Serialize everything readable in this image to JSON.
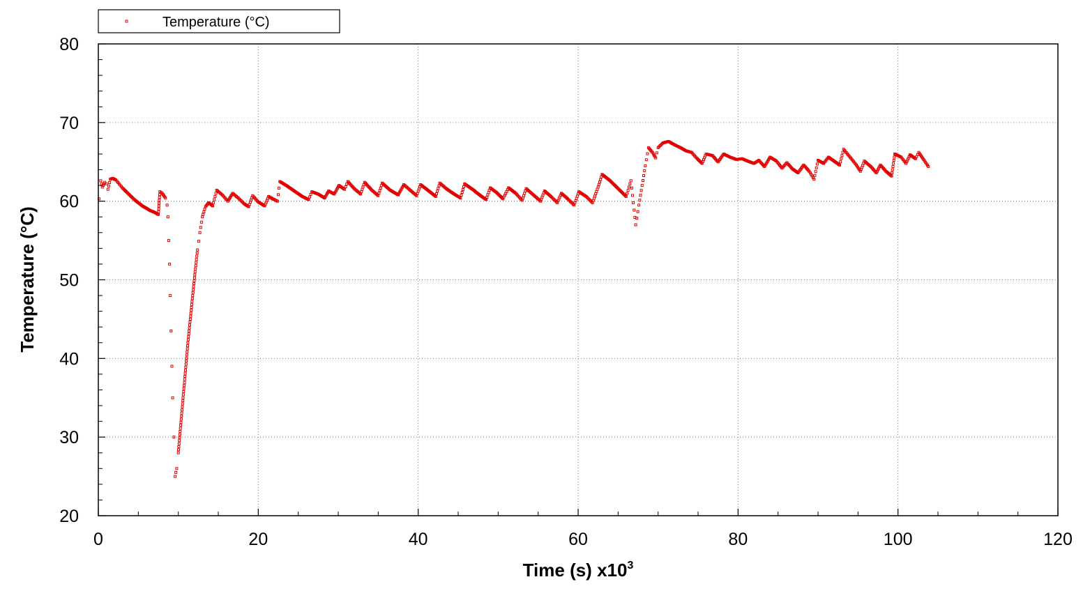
{
  "chart_data": {
    "type": "scatter",
    "xlabel": "Time (s) x10",
    "xlabel_superscript": "3",
    "ylabel": "Temperature  (°C)",
    "xlim": [
      0,
      120
    ],
    "ylim": [
      20,
      80
    ],
    "xticks": [
      0,
      20,
      40,
      60,
      80,
      100,
      120
    ],
    "yticks": [
      20,
      30,
      40,
      50,
      60,
      70,
      80
    ],
    "grid": true,
    "legend_position": "top-left",
    "series": [
      {
        "name": "Temperature (°C)",
        "color": "#e00000",
        "marker": "small-square",
        "points": [
          [
            0.1,
            60.3
          ],
          [
            0.3,
            62.6
          ],
          [
            0.5,
            61.8
          ],
          [
            0.8,
            62.4
          ],
          [
            1.0,
            62.2
          ],
          [
            1.2,
            61.5
          ],
          [
            1.5,
            62.8
          ],
          [
            1.8,
            62.9
          ],
          [
            2.2,
            62.7
          ],
          [
            2.6,
            62.2
          ],
          [
            3.0,
            61.7
          ],
          [
            3.5,
            61.2
          ],
          [
            4.0,
            60.7
          ],
          [
            4.5,
            60.2
          ],
          [
            5.0,
            59.8
          ],
          [
            5.5,
            59.4
          ],
          [
            6.0,
            59.1
          ],
          [
            6.5,
            58.8
          ],
          [
            7.0,
            58.6
          ],
          [
            7.5,
            58.3
          ],
          [
            7.7,
            61.2
          ],
          [
            8.0,
            61.0
          ],
          [
            8.4,
            60.4
          ],
          [
            8.6,
            59.5
          ],
          [
            8.7,
            58.0
          ],
          [
            8.8,
            55.0
          ],
          [
            8.9,
            52.0
          ],
          [
            9.0,
            48.0
          ],
          [
            9.1,
            43.5
          ],
          [
            9.2,
            39.0
          ],
          [
            9.3,
            35.0
          ],
          [
            9.45,
            30.0
          ],
          [
            9.6,
            25.0
          ],
          [
            9.8,
            26.0
          ],
          [
            10.0,
            28.0
          ],
          [
            10.3,
            31.5
          ],
          [
            10.6,
            35.0
          ],
          [
            10.9,
            38.5
          ],
          [
            11.2,
            42.0
          ],
          [
            11.5,
            45.0
          ],
          [
            11.8,
            48.0
          ],
          [
            12.1,
            51.0
          ],
          [
            12.4,
            53.8
          ],
          [
            12.7,
            56.0
          ],
          [
            13.0,
            58.0
          ],
          [
            13.4,
            59.3
          ],
          [
            13.8,
            59.8
          ],
          [
            14.3,
            59.4
          ],
          [
            14.8,
            61.4
          ],
          [
            15.5,
            60.8
          ],
          [
            16.2,
            60.0
          ],
          [
            16.8,
            61.0
          ],
          [
            17.5,
            60.4
          ],
          [
            18.2,
            59.7
          ],
          [
            18.8,
            59.3
          ],
          [
            19.3,
            60.7
          ],
          [
            20.0,
            59.9
          ],
          [
            20.8,
            59.4
          ],
          [
            21.3,
            60.6
          ],
          [
            21.8,
            60.3
          ],
          [
            22.4,
            60.0
          ],
          [
            22.7,
            62.5
          ],
          [
            23.5,
            62.0
          ],
          [
            24.5,
            61.3
          ],
          [
            25.5,
            60.6
          ],
          [
            26.3,
            60.2
          ],
          [
            26.7,
            61.2
          ],
          [
            27.5,
            60.9
          ],
          [
            28.3,
            60.4
          ],
          [
            28.8,
            61.3
          ],
          [
            29.5,
            60.9
          ],
          [
            30.1,
            62.0
          ],
          [
            30.8,
            61.5
          ],
          [
            31.2,
            62.5
          ],
          [
            32.0,
            61.6
          ],
          [
            32.8,
            60.9
          ],
          [
            33.3,
            62.4
          ],
          [
            34.2,
            61.4
          ],
          [
            35.0,
            60.7
          ],
          [
            35.5,
            62.3
          ],
          [
            36.5,
            61.4
          ],
          [
            37.5,
            60.8
          ],
          [
            38.2,
            62.1
          ],
          [
            39.0,
            61.4
          ],
          [
            39.8,
            60.7
          ],
          [
            40.3,
            62.1
          ],
          [
            41.2,
            61.4
          ],
          [
            42.2,
            60.6
          ],
          [
            42.7,
            62.3
          ],
          [
            43.5,
            61.6
          ],
          [
            44.5,
            60.9
          ],
          [
            45.3,
            60.4
          ],
          [
            45.8,
            62.2
          ],
          [
            46.8,
            61.5
          ],
          [
            47.8,
            60.7
          ],
          [
            48.5,
            60.2
          ],
          [
            49.0,
            61.7
          ],
          [
            49.8,
            61.1
          ],
          [
            50.6,
            60.3
          ],
          [
            51.3,
            61.7
          ],
          [
            52.2,
            61.0
          ],
          [
            53.0,
            60.1
          ],
          [
            53.5,
            61.6
          ],
          [
            54.4,
            60.8
          ],
          [
            55.3,
            60.0
          ],
          [
            55.8,
            61.3
          ],
          [
            56.6,
            60.6
          ],
          [
            57.4,
            59.8
          ],
          [
            57.9,
            61.0
          ],
          [
            58.7,
            60.3
          ],
          [
            59.5,
            59.5
          ],
          [
            60.1,
            61.2
          ],
          [
            61.0,
            60.6
          ],
          [
            61.8,
            59.8
          ],
          [
            62.5,
            61.8
          ],
          [
            63.0,
            63.4
          ],
          [
            64.0,
            62.6
          ],
          [
            65.0,
            61.6
          ],
          [
            66.0,
            60.6
          ],
          [
            66.6,
            62.6
          ],
          [
            67.2,
            57.0
          ],
          [
            67.6,
            59.5
          ],
          [
            68.0,
            62.0
          ],
          [
            68.4,
            64.5
          ],
          [
            68.8,
            66.8
          ],
          [
            69.3,
            66.2
          ],
          [
            69.7,
            65.5
          ],
          [
            70.0,
            66.8
          ],
          [
            70.6,
            67.4
          ],
          [
            71.3,
            67.6
          ],
          [
            72.0,
            67.2
          ],
          [
            72.8,
            66.8
          ],
          [
            73.5,
            66.4
          ],
          [
            74.2,
            66.2
          ],
          [
            74.8,
            65.5
          ],
          [
            75.5,
            64.8
          ],
          [
            76.0,
            66.0
          ],
          [
            76.8,
            65.8
          ],
          [
            77.5,
            65.0
          ],
          [
            78.2,
            66.0
          ],
          [
            79.0,
            65.6
          ],
          [
            79.8,
            65.3
          ],
          [
            80.5,
            65.4
          ],
          [
            81.2,
            65.1
          ],
          [
            82.0,
            64.8
          ],
          [
            82.6,
            65.2
          ],
          [
            83.3,
            64.4
          ],
          [
            84.0,
            65.6
          ],
          [
            84.8,
            65.1
          ],
          [
            85.5,
            64.2
          ],
          [
            86.1,
            64.9
          ],
          [
            86.8,
            64.1
          ],
          [
            87.5,
            63.6
          ],
          [
            88.2,
            64.6
          ],
          [
            88.9,
            63.8
          ],
          [
            89.5,
            62.8
          ],
          [
            90.0,
            65.2
          ],
          [
            90.7,
            64.8
          ],
          [
            91.3,
            65.6
          ],
          [
            92.0,
            65.1
          ],
          [
            92.7,
            64.6
          ],
          [
            93.2,
            66.6
          ],
          [
            94.0,
            65.6
          ],
          [
            94.8,
            64.6
          ],
          [
            95.3,
            63.8
          ],
          [
            95.8,
            65.1
          ],
          [
            96.6,
            64.4
          ],
          [
            97.3,
            63.6
          ],
          [
            97.8,
            64.6
          ],
          [
            98.5,
            63.8
          ],
          [
            99.2,
            63.2
          ],
          [
            99.6,
            66.0
          ],
          [
            100.4,
            65.6
          ],
          [
            101.0,
            64.8
          ],
          [
            101.5,
            65.9
          ],
          [
            102.2,
            65.4
          ],
          [
            102.6,
            66.2
          ],
          [
            103.2,
            65.3
          ],
          [
            103.8,
            64.4
          ]
        ]
      }
    ]
  }
}
